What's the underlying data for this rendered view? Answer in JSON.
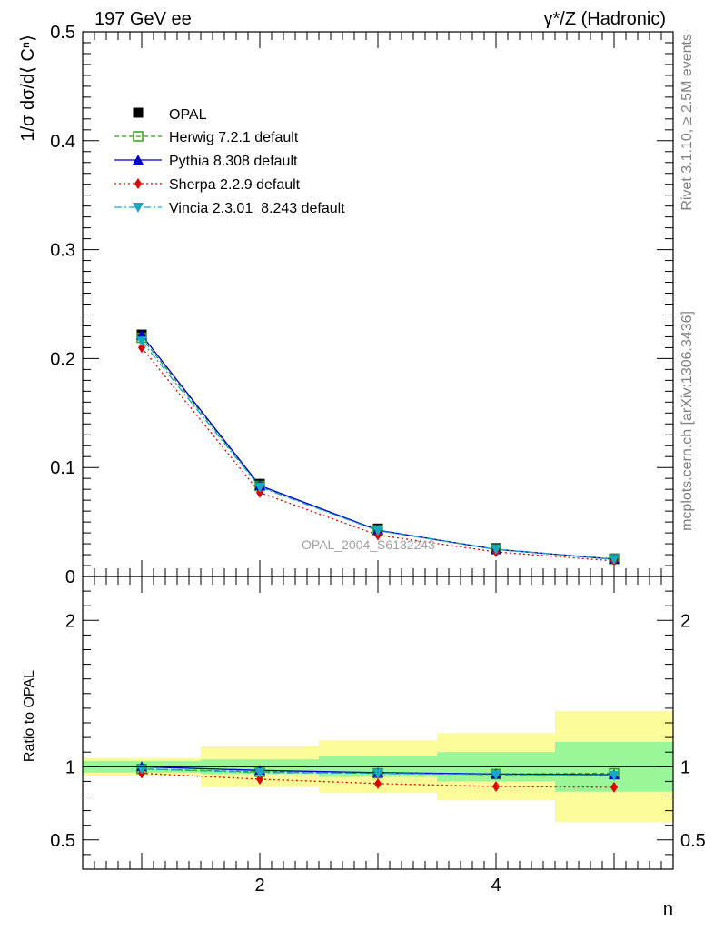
{
  "chart_data": {
    "type": "line",
    "energy_label": "197 GeV ee",
    "process_label": "γ*/Z (Hadronic)",
    "ylabel_main": "1/σ dσ/d⟨ Cⁿ⟩",
    "ylabel_ratio": "Ratio to OPAL",
    "xlabel": "n",
    "side_label_top": "Rivet 3.1.10, ≥ 2.5M events",
    "side_label_bottom": "mcplots.cern.ch [arXiv:1306.3436]",
    "analysis_id": "OPAL_2004_S6132243",
    "x": [
      1,
      2,
      3,
      4,
      5
    ],
    "xlim": [
      0.5,
      5.5
    ],
    "ylim_main": [
      0,
      0.5
    ],
    "ylim_ratio": [
      0.3,
      2.3
    ],
    "main_yticks": [
      "0",
      "0.1",
      "0.2",
      "0.3",
      "0.4",
      "0.5"
    ],
    "ratio_yticks": [
      "0.5",
      "1",
      "2"
    ],
    "xticks": [
      "2",
      "4"
    ],
    "data": {
      "name": "OPAL",
      "values": [
        0.222,
        0.085,
        0.044,
        0.026,
        0.0165
      ],
      "ratio_band_inner": [
        0.04,
        0.05,
        0.07,
        0.1,
        0.17
      ],
      "ratio_band_outer": [
        0.06,
        0.14,
        0.18,
        0.23,
        0.38
      ]
    },
    "series": [
      {
        "name": "Herwig 7.2.1 default",
        "color": "#3a9a1a",
        "values": [
          0.219,
          0.083,
          0.0425,
          0.025,
          0.016
        ],
        "ratio": [
          0.985,
          0.965,
          0.955,
          0.95,
          0.955
        ]
      },
      {
        "name": "Pythia 8.308 default",
        "color": "#0000cc",
        "values": [
          0.2215,
          0.0835,
          0.0425,
          0.0248,
          0.0158
        ],
        "ratio": [
          1.0,
          0.975,
          0.96,
          0.95,
          0.945
        ]
      },
      {
        "name": "Sherpa 2.2.9 default",
        "color": "#e00000",
        "values": [
          0.21,
          0.077,
          0.038,
          0.0225,
          0.0143
        ],
        "ratio": [
          0.955,
          0.915,
          0.885,
          0.865,
          0.86
        ]
      },
      {
        "name": "Vincia 2.3.01_8.243 default",
        "color": "#17a8c4",
        "values": [
          0.216,
          0.082,
          0.042,
          0.0248,
          0.0158
        ],
        "ratio": [
          0.985,
          0.96,
          0.955,
          0.945,
          0.94
        ]
      }
    ],
    "legend_position": "top-left",
    "colors": {
      "band_inner": "#99f799",
      "band_outer": "#fbfb99"
    }
  }
}
